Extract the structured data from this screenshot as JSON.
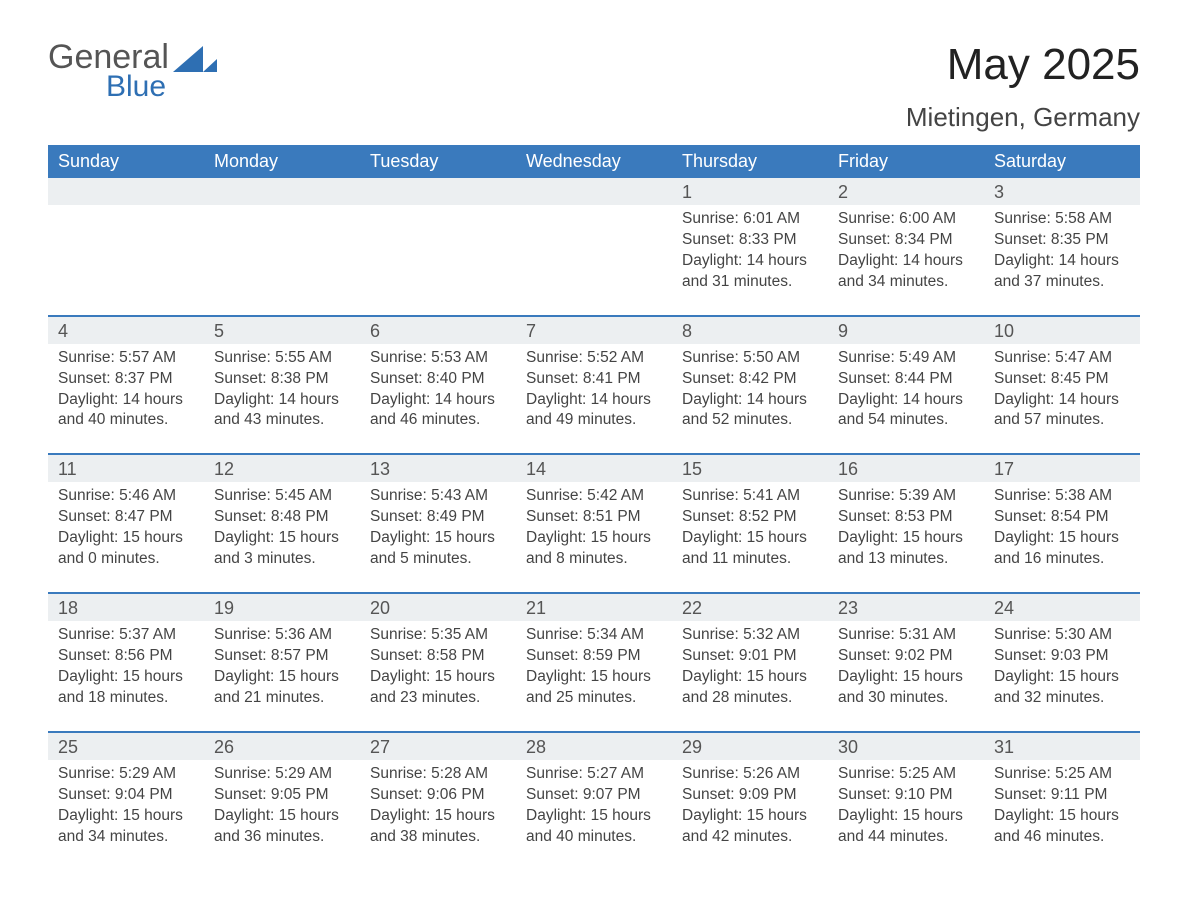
{
  "logo": {
    "word1": "General",
    "word2": "Blue",
    "tri_color": "#2e6fb3"
  },
  "title": "May 2025",
  "location": "Mietingen, Germany",
  "colors": {
    "header_bg": "#3a7abd",
    "header_text": "#ffffff",
    "daynum_bg": "#eceff1",
    "week_divider": "#3a7abd",
    "body_text": "#444444",
    "page_bg": "#ffffff"
  },
  "font": {
    "family": "Arial",
    "title_size_pt": 33,
    "location_size_pt": 20,
    "dow_size_pt": 14,
    "daynum_size_pt": 14,
    "body_size_pt": 12
  },
  "days_of_week": [
    "Sunday",
    "Monday",
    "Tuesday",
    "Wednesday",
    "Thursday",
    "Friday",
    "Saturday"
  ],
  "weeks": [
    [
      {
        "n": "",
        "lines": []
      },
      {
        "n": "",
        "lines": []
      },
      {
        "n": "",
        "lines": []
      },
      {
        "n": "",
        "lines": []
      },
      {
        "n": "1",
        "lines": [
          "Sunrise: 6:01 AM",
          "Sunset: 8:33 PM",
          "Daylight: 14 hours and 31 minutes."
        ]
      },
      {
        "n": "2",
        "lines": [
          "Sunrise: 6:00 AM",
          "Sunset: 8:34 PM",
          "Daylight: 14 hours and 34 minutes."
        ]
      },
      {
        "n": "3",
        "lines": [
          "Sunrise: 5:58 AM",
          "Sunset: 8:35 PM",
          "Daylight: 14 hours and 37 minutes."
        ]
      }
    ],
    [
      {
        "n": "4",
        "lines": [
          "Sunrise: 5:57 AM",
          "Sunset: 8:37 PM",
          "Daylight: 14 hours and 40 minutes."
        ]
      },
      {
        "n": "5",
        "lines": [
          "Sunrise: 5:55 AM",
          "Sunset: 8:38 PM",
          "Daylight: 14 hours and 43 minutes."
        ]
      },
      {
        "n": "6",
        "lines": [
          "Sunrise: 5:53 AM",
          "Sunset: 8:40 PM",
          "Daylight: 14 hours and 46 minutes."
        ]
      },
      {
        "n": "7",
        "lines": [
          "Sunrise: 5:52 AM",
          "Sunset: 8:41 PM",
          "Daylight: 14 hours and 49 minutes."
        ]
      },
      {
        "n": "8",
        "lines": [
          "Sunrise: 5:50 AM",
          "Sunset: 8:42 PM",
          "Daylight: 14 hours and 52 minutes."
        ]
      },
      {
        "n": "9",
        "lines": [
          "Sunrise: 5:49 AM",
          "Sunset: 8:44 PM",
          "Daylight: 14 hours and 54 minutes."
        ]
      },
      {
        "n": "10",
        "lines": [
          "Sunrise: 5:47 AM",
          "Sunset: 8:45 PM",
          "Daylight: 14 hours and 57 minutes."
        ]
      }
    ],
    [
      {
        "n": "11",
        "lines": [
          "Sunrise: 5:46 AM",
          "Sunset: 8:47 PM",
          "Daylight: 15 hours and 0 minutes."
        ]
      },
      {
        "n": "12",
        "lines": [
          "Sunrise: 5:45 AM",
          "Sunset: 8:48 PM",
          "Daylight: 15 hours and 3 minutes."
        ]
      },
      {
        "n": "13",
        "lines": [
          "Sunrise: 5:43 AM",
          "Sunset: 8:49 PM",
          "Daylight: 15 hours and 5 minutes."
        ]
      },
      {
        "n": "14",
        "lines": [
          "Sunrise: 5:42 AM",
          "Sunset: 8:51 PM",
          "Daylight: 15 hours and 8 minutes."
        ]
      },
      {
        "n": "15",
        "lines": [
          "Sunrise: 5:41 AM",
          "Sunset: 8:52 PM",
          "Daylight: 15 hours and 11 minutes."
        ]
      },
      {
        "n": "16",
        "lines": [
          "Sunrise: 5:39 AM",
          "Sunset: 8:53 PM",
          "Daylight: 15 hours and 13 minutes."
        ]
      },
      {
        "n": "17",
        "lines": [
          "Sunrise: 5:38 AM",
          "Sunset: 8:54 PM",
          "Daylight: 15 hours and 16 minutes."
        ]
      }
    ],
    [
      {
        "n": "18",
        "lines": [
          "Sunrise: 5:37 AM",
          "Sunset: 8:56 PM",
          "Daylight: 15 hours and 18 minutes."
        ]
      },
      {
        "n": "19",
        "lines": [
          "Sunrise: 5:36 AM",
          "Sunset: 8:57 PM",
          "Daylight: 15 hours and 21 minutes."
        ]
      },
      {
        "n": "20",
        "lines": [
          "Sunrise: 5:35 AM",
          "Sunset: 8:58 PM",
          "Daylight: 15 hours and 23 minutes."
        ]
      },
      {
        "n": "21",
        "lines": [
          "Sunrise: 5:34 AM",
          "Sunset: 8:59 PM",
          "Daylight: 15 hours and 25 minutes."
        ]
      },
      {
        "n": "22",
        "lines": [
          "Sunrise: 5:32 AM",
          "Sunset: 9:01 PM",
          "Daylight: 15 hours and 28 minutes."
        ]
      },
      {
        "n": "23",
        "lines": [
          "Sunrise: 5:31 AM",
          "Sunset: 9:02 PM",
          "Daylight: 15 hours and 30 minutes."
        ]
      },
      {
        "n": "24",
        "lines": [
          "Sunrise: 5:30 AM",
          "Sunset: 9:03 PM",
          "Daylight: 15 hours and 32 minutes."
        ]
      }
    ],
    [
      {
        "n": "25",
        "lines": [
          "Sunrise: 5:29 AM",
          "Sunset: 9:04 PM",
          "Daylight: 15 hours and 34 minutes."
        ]
      },
      {
        "n": "26",
        "lines": [
          "Sunrise: 5:29 AM",
          "Sunset: 9:05 PM",
          "Daylight: 15 hours and 36 minutes."
        ]
      },
      {
        "n": "27",
        "lines": [
          "Sunrise: 5:28 AM",
          "Sunset: 9:06 PM",
          "Daylight: 15 hours and 38 minutes."
        ]
      },
      {
        "n": "28",
        "lines": [
          "Sunrise: 5:27 AM",
          "Sunset: 9:07 PM",
          "Daylight: 15 hours and 40 minutes."
        ]
      },
      {
        "n": "29",
        "lines": [
          "Sunrise: 5:26 AM",
          "Sunset: 9:09 PM",
          "Daylight: 15 hours and 42 minutes."
        ]
      },
      {
        "n": "30",
        "lines": [
          "Sunrise: 5:25 AM",
          "Sunset: 9:10 PM",
          "Daylight: 15 hours and 44 minutes."
        ]
      },
      {
        "n": "31",
        "lines": [
          "Sunrise: 5:25 AM",
          "Sunset: 9:11 PM",
          "Daylight: 15 hours and 46 minutes."
        ]
      }
    ]
  ]
}
